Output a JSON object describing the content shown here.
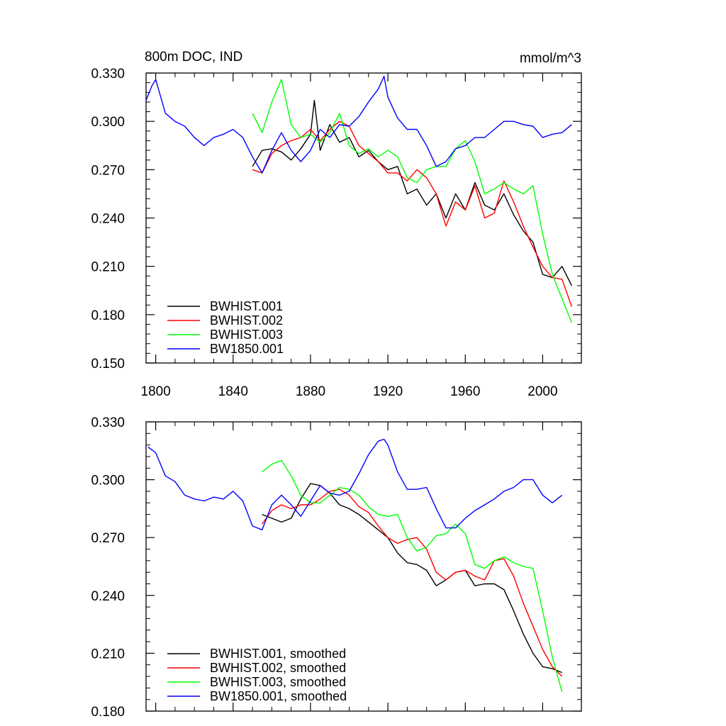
{
  "chart_data": [
    {
      "type": "line",
      "title": "800m DOC, IND",
      "units": "mmol/m^3",
      "xlim": [
        1795,
        2020
      ],
      "ylim": [
        0.15,
        0.33
      ],
      "x_ticks": [
        1800,
        1840,
        1880,
        1920,
        1960,
        2000
      ],
      "y_ticks": [
        0.15,
        0.18,
        0.21,
        0.24,
        0.27,
        0.3,
        0.33
      ],
      "y_tick_labels": [
        "0.150",
        "0.180",
        "0.210",
        "0.240",
        "0.270",
        "0.300",
        "0.330"
      ],
      "x_tick_labels": [
        "1800",
        "1840",
        "1880",
        "1920",
        "1960",
        "2000"
      ],
      "legend_position": "bottom-left",
      "series": [
        {
          "name": "BWHIST.001",
          "color": "#000000",
          "x": [
            1850,
            1855,
            1860,
            1865,
            1870,
            1875,
            1880,
            1882,
            1885,
            1890,
            1895,
            1900,
            1905,
            1910,
            1915,
            1920,
            1925,
            1930,
            1935,
            1940,
            1945,
            1950,
            1955,
            1960,
            1965,
            1970,
            1975,
            1980,
            1985,
            1990,
            1995,
            2000,
            2005,
            2010,
            2015
          ],
          "y": [
            0.272,
            0.282,
            0.283,
            0.281,
            0.276,
            0.283,
            0.292,
            0.313,
            0.282,
            0.298,
            0.287,
            0.29,
            0.278,
            0.282,
            0.275,
            0.27,
            0.272,
            0.255,
            0.258,
            0.248,
            0.255,
            0.24,
            0.255,
            0.245,
            0.262,
            0.248,
            0.245,
            0.255,
            0.242,
            0.232,
            0.225,
            0.205,
            0.203,
            0.21,
            0.198
          ]
        },
        {
          "name": "BWHIST.002",
          "color": "#ff0000",
          "x": [
            1850,
            1855,
            1860,
            1865,
            1870,
            1875,
            1880,
            1885,
            1890,
            1895,
            1900,
            1905,
            1910,
            1915,
            1920,
            1925,
            1930,
            1935,
            1940,
            1945,
            1950,
            1955,
            1960,
            1965,
            1970,
            1975,
            1980,
            1985,
            1990,
            1995,
            2000,
            2005,
            2010,
            2015
          ],
          "y": [
            0.27,
            0.268,
            0.28,
            0.285,
            0.288,
            0.29,
            0.295,
            0.288,
            0.295,
            0.3,
            0.297,
            0.285,
            0.28,
            0.275,
            0.268,
            0.268,
            0.263,
            0.27,
            0.265,
            0.255,
            0.235,
            0.25,
            0.245,
            0.26,
            0.24,
            0.243,
            0.263,
            0.25,
            0.235,
            0.222,
            0.21,
            0.203,
            0.202,
            0.185
          ]
        },
        {
          "name": "BWHIST.003",
          "color": "#00ff00",
          "x": [
            1850,
            1855,
            1860,
            1865,
            1870,
            1875,
            1880,
            1885,
            1890,
            1895,
            1900,
            1905,
            1910,
            1915,
            1920,
            1925,
            1930,
            1935,
            1940,
            1945,
            1950,
            1955,
            1960,
            1965,
            1970,
            1975,
            1980,
            1985,
            1990,
            1995,
            2000,
            2005,
            2010,
            2015
          ],
          "y": [
            0.305,
            0.293,
            0.312,
            0.326,
            0.298,
            0.29,
            0.292,
            0.287,
            0.293,
            0.305,
            0.285,
            0.28,
            0.283,
            0.278,
            0.282,
            0.278,
            0.265,
            0.262,
            0.27,
            0.272,
            0.272,
            0.283,
            0.288,
            0.275,
            0.255,
            0.258,
            0.262,
            0.258,
            0.255,
            0.26,
            0.23,
            0.205,
            0.19,
            0.175
          ]
        },
        {
          "name": "BW1850.001",
          "color": "#0000ff",
          "x": [
            1795,
            1798,
            1800,
            1805,
            1810,
            1815,
            1820,
            1825,
            1830,
            1835,
            1840,
            1845,
            1850,
            1855,
            1860,
            1865,
            1870,
            1875,
            1880,
            1885,
            1890,
            1895,
            1900,
            1905,
            1910,
            1915,
            1918,
            1920,
            1925,
            1930,
            1935,
            1940,
            1945,
            1950,
            1955,
            1960,
            1965,
            1970,
            1975,
            1980,
            1985,
            1990,
            1995,
            2000,
            2005,
            2010,
            2015
          ],
          "y": [
            0.313,
            0.322,
            0.326,
            0.305,
            0.3,
            0.297,
            0.29,
            0.285,
            0.29,
            0.292,
            0.295,
            0.29,
            0.278,
            0.268,
            0.282,
            0.293,
            0.282,
            0.275,
            0.282,
            0.295,
            0.29,
            0.298,
            0.297,
            0.303,
            0.312,
            0.32,
            0.328,
            0.315,
            0.302,
            0.295,
            0.295,
            0.285,
            0.272,
            0.275,
            0.283,
            0.285,
            0.29,
            0.29,
            0.295,
            0.3,
            0.3,
            0.298,
            0.297,
            0.29,
            0.292,
            0.293,
            0.298
          ]
        }
      ]
    },
    {
      "type": "line",
      "xlim": [
        1795,
        2020
      ],
      "ylim": [
        0.18,
        0.33
      ],
      "x_ticks": [
        1800,
        1840,
        1880,
        1920,
        1960,
        2000
      ],
      "y_ticks": [
        0.18,
        0.21,
        0.24,
        0.27,
        0.3,
        0.33
      ],
      "y_tick_labels": [
        "0.180",
        "0.210",
        "0.240",
        "0.270",
        "0.300",
        "0.330"
      ],
      "legend_position": "bottom-left",
      "series": [
        {
          "name": "BWHIST.001, smoothed",
          "color": "#000000",
          "x": [
            1855,
            1860,
            1865,
            1870,
            1875,
            1880,
            1885,
            1890,
            1895,
            1900,
            1905,
            1910,
            1915,
            1920,
            1925,
            1930,
            1935,
            1940,
            1945,
            1950,
            1955,
            1960,
            1965,
            1970,
            1975,
            1980,
            1985,
            1990,
            1995,
            2000,
            2005,
            2010
          ],
          "y": [
            0.282,
            0.28,
            0.278,
            0.28,
            0.29,
            0.298,
            0.297,
            0.293,
            0.287,
            0.285,
            0.282,
            0.278,
            0.274,
            0.27,
            0.262,
            0.257,
            0.256,
            0.253,
            0.245,
            0.248,
            0.252,
            0.253,
            0.245,
            0.246,
            0.246,
            0.243,
            0.232,
            0.22,
            0.21,
            0.203,
            0.202,
            0.2
          ]
        },
        {
          "name": "BWHIST.002, smoothed",
          "color": "#ff0000",
          "x": [
            1855,
            1860,
            1865,
            1870,
            1875,
            1880,
            1885,
            1890,
            1895,
            1900,
            1905,
            1910,
            1915,
            1920,
            1925,
            1930,
            1935,
            1940,
            1945,
            1950,
            1955,
            1960,
            1965,
            1970,
            1975,
            1980,
            1985,
            1990,
            1995,
            2000,
            2005,
            2010
          ],
          "y": [
            0.277,
            0.284,
            0.287,
            0.285,
            0.287,
            0.287,
            0.29,
            0.294,
            0.295,
            0.292,
            0.286,
            0.283,
            0.276,
            0.27,
            0.267,
            0.269,
            0.27,
            0.264,
            0.252,
            0.248,
            0.252,
            0.253,
            0.25,
            0.248,
            0.258,
            0.259,
            0.25,
            0.236,
            0.224,
            0.212,
            0.203,
            0.198
          ]
        },
        {
          "name": "BWHIST.003, smoothed",
          "color": "#00ff00",
          "x": [
            1855,
            1860,
            1865,
            1870,
            1875,
            1880,
            1885,
            1890,
            1895,
            1900,
            1905,
            1910,
            1915,
            1920,
            1925,
            1930,
            1935,
            1940,
            1945,
            1950,
            1955,
            1960,
            1965,
            1970,
            1975,
            1980,
            1985,
            1990,
            1995,
            2000,
            2005,
            2010
          ],
          "y": [
            0.304,
            0.308,
            0.31,
            0.302,
            0.292,
            0.288,
            0.288,
            0.292,
            0.296,
            0.295,
            0.292,
            0.286,
            0.282,
            0.281,
            0.282,
            0.27,
            0.263,
            0.265,
            0.271,
            0.272,
            0.277,
            0.272,
            0.256,
            0.254,
            0.258,
            0.26,
            0.257,
            0.255,
            0.254,
            0.232,
            0.208,
            0.19
          ]
        },
        {
          "name": "BW1850.001, smoothed",
          "color": "#0000ff",
          "x": [
            1796,
            1800,
            1805,
            1810,
            1815,
            1820,
            1825,
            1830,
            1835,
            1840,
            1845,
            1850,
            1855,
            1860,
            1865,
            1870,
            1875,
            1880,
            1885,
            1890,
            1895,
            1900,
            1905,
            1910,
            1915,
            1918,
            1920,
            1925,
            1930,
            1935,
            1940,
            1945,
            1950,
            1955,
            1960,
            1965,
            1970,
            1975,
            1980,
            1985,
            1990,
            1995,
            2000,
            2005,
            2010
          ],
          "y": [
            0.317,
            0.314,
            0.302,
            0.299,
            0.292,
            0.29,
            0.289,
            0.291,
            0.29,
            0.294,
            0.289,
            0.276,
            0.274,
            0.287,
            0.292,
            0.287,
            0.281,
            0.289,
            0.297,
            0.293,
            0.292,
            0.294,
            0.303,
            0.313,
            0.32,
            0.321,
            0.318,
            0.304,
            0.295,
            0.295,
            0.296,
            0.285,
            0.275,
            0.275,
            0.28,
            0.284,
            0.287,
            0.29,
            0.294,
            0.296,
            0.3,
            0.3,
            0.292,
            0.288,
            0.292
          ]
        }
      ]
    }
  ]
}
